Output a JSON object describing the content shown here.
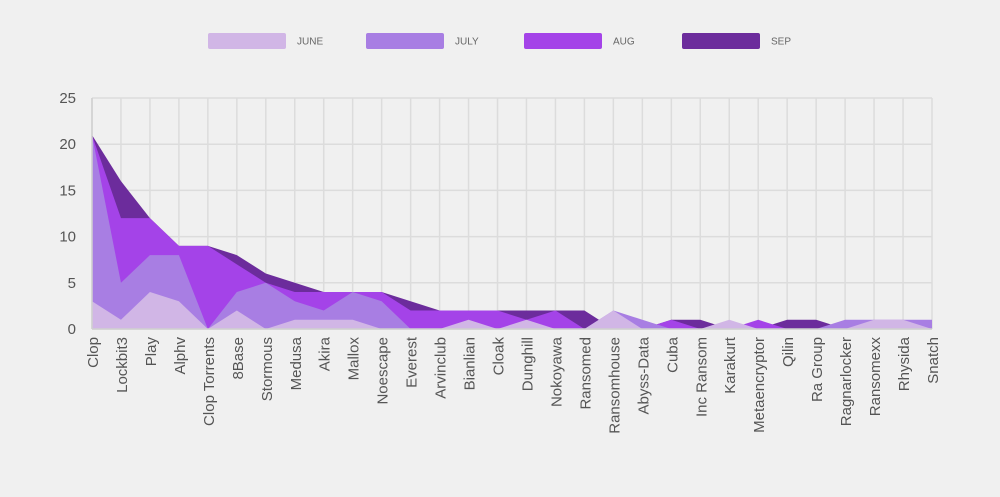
{
  "chart_data": {
    "type": "area",
    "stacked": false,
    "categories": [
      "Clop",
      "Lockbit3",
      "Play",
      "Alphv",
      "Clop Torrents",
      "8Base",
      "Stormous",
      "Medusa",
      "Akira",
      "Mallox",
      "Noescape",
      "Everest",
      "Arvinclub",
      "Bianlian",
      "Cloak",
      "Dunghill",
      "Nokoyawa",
      "Ransomed",
      "Ransomhouse",
      "Abyss-Data",
      "Cuba",
      "Inc Ransom",
      "Karakurt",
      "Metaencryptor",
      "Qilin",
      "Ra Group",
      "Ragnarlocker",
      "Ransomexx",
      "Rhysida",
      "Snatch"
    ],
    "series": [
      {
        "name": "JUNE",
        "color": "#d1b6e6",
        "values": [
          3,
          1,
          4,
          3,
          0,
          2,
          0,
          1,
          1,
          1,
          0,
          0,
          0,
          1,
          0,
          1,
          0,
          0,
          2,
          0,
          0,
          0,
          1,
          0,
          0,
          0,
          0,
          1,
          1,
          0
        ]
      },
      {
        "name": "JULY",
        "color": "#a87ee3",
        "values": [
          21,
          5,
          8,
          8,
          0,
          4,
          5,
          3,
          2,
          4,
          3,
          0,
          0,
          0,
          0,
          0,
          0,
          0,
          2,
          1,
          0,
          0,
          0,
          0,
          0,
          0,
          1,
          1,
          1,
          1
        ]
      },
      {
        "name": "AUG",
        "color": "#a443e8",
        "values": [
          21,
          12,
          12,
          9,
          9,
          7,
          5,
          4,
          4,
          4,
          4,
          2,
          2,
          2,
          2,
          1,
          2,
          0,
          0,
          0,
          1,
          0,
          0,
          1,
          0,
          0,
          0,
          0,
          0,
          0
        ]
      },
      {
        "name": "SEP",
        "color": "#6c2c9c",
        "values": [
          21,
          16,
          12,
          9,
          9,
          8,
          6,
          5,
          4,
          4,
          4,
          3,
          2,
          2,
          2,
          2,
          2,
          2,
          0,
          0,
          1,
          1,
          0,
          0,
          1,
          1,
          0,
          0,
          0,
          0
        ]
      }
    ],
    "yticks": [
      0,
      5,
      10,
      15,
      20,
      25
    ],
    "ylim": [
      0,
      25
    ],
    "grid": true,
    "legend_position": "top-center",
    "title": "",
    "xlabel": "",
    "ylabel": ""
  }
}
